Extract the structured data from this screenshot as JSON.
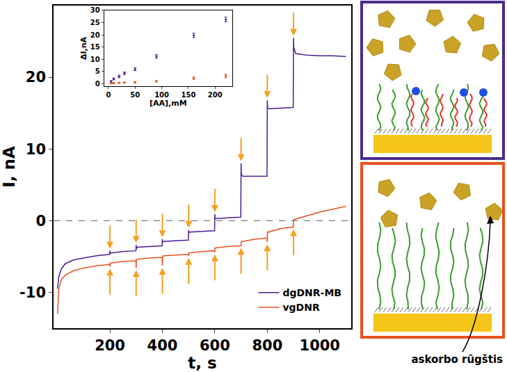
{
  "chart_data": [
    {
      "type": "line",
      "xlabel": "t, s",
      "ylabel": "I, nA",
      "xlim": [
        -15,
        1120
      ],
      "xticks": [
        200,
        400,
        600,
        800,
        1000
      ],
      "ylim": [
        -15,
        30
      ],
      "yticks": [
        -10,
        0,
        10,
        20
      ],
      "hline": 0,
      "legend": "bottom right",
      "injections": [
        200,
        300,
        400,
        500,
        600,
        700,
        800,
        900
      ],
      "series": [
        {
          "name": "dgDNR-MB",
          "color": "#4b1d96",
          "x": [
            0,
            5,
            15,
            30,
            60,
            100,
            150,
            199,
            200,
            201,
            205,
            250,
            299,
            300,
            301,
            305,
            350,
            399,
            400,
            401,
            405,
            450,
            499,
            500,
            501,
            505,
            550,
            599,
            600,
            601,
            605,
            650,
            699,
            700,
            701,
            706,
            750,
            799,
            800,
            801,
            806,
            850,
            899,
            900,
            901,
            908,
            950,
            1000,
            1050,
            1100
          ],
          "values": [
            -9.5,
            -7.8,
            -6.7,
            -6.0,
            -5.5,
            -5.2,
            -4.9,
            -4.7,
            -4.2,
            -4.6,
            -4.5,
            -4.3,
            -4.2,
            -3.4,
            -3.9,
            -3.7,
            -3.6,
            -3.5,
            -2.6,
            -3.0,
            -2.9,
            -2.8,
            -2.7,
            -1.3,
            -1.7,
            -1.6,
            -1.5,
            -1.4,
            0.9,
            0.3,
            0.3,
            0.4,
            0.5,
            8.0,
            6.5,
            6.2,
            6.2,
            6.2,
            16.8,
            15.8,
            15.6,
            15.7,
            15.8,
            25.5,
            24.2,
            23.3,
            23.1,
            23.0,
            23.0,
            22.9
          ]
        },
        {
          "name": "vgDNR",
          "color": "#e8501e",
          "x": [
            0,
            5,
            15,
            30,
            60,
            100,
            150,
            199,
            200,
            201,
            205,
            250,
            299,
            300,
            301,
            305,
            350,
            399,
            400,
            401,
            405,
            450,
            499,
            500,
            501,
            505,
            550,
            599,
            600,
            601,
            605,
            650,
            699,
            700,
            701,
            705,
            750,
            799,
            800,
            801,
            805,
            850,
            899,
            900,
            901,
            905,
            950,
            1000,
            1050,
            1100
          ],
          "values": [
            -13.0,
            -9.5,
            -8.2,
            -7.6,
            -7.0,
            -6.6,
            -6.3,
            -6.1,
            -6.4,
            -5.9,
            -5.9,
            -5.7,
            -5.6,
            -6.6,
            -5.4,
            -5.4,
            -5.2,
            -5.1,
            -6.3,
            -5.0,
            -4.9,
            -4.8,
            -4.7,
            -4.9,
            -4.5,
            -4.5,
            -4.3,
            -4.2,
            -4.4,
            -3.8,
            -3.8,
            -3.6,
            -3.5,
            -3.4,
            -2.9,
            -2.9,
            -2.6,
            -2.4,
            -3.0,
            -1.5,
            -1.6,
            -1.1,
            -0.9,
            -0.2,
            0.1,
            0.2,
            0.7,
            1.2,
            1.6,
            2.0
          ]
        }
      ]
    },
    {
      "type": "scatter",
      "xlabel": "[AA],mM",
      "ylabel": "ΔI,nA",
      "xlim": [
        -8,
        232
      ],
      "xticks": [
        0,
        50,
        100,
        150,
        200
      ],
      "ylim": [
        -1,
        30
      ],
      "yticks": [
        0,
        5,
        10,
        15,
        20,
        25,
        30
      ],
      "hline": 0,
      "x": [
        5,
        10,
        20,
        30,
        50,
        90,
        160,
        220
      ],
      "series": [
        {
          "color": "#4b1d96",
          "values": [
            1.0,
            2.0,
            3.0,
            4.3,
            6.0,
            11.2,
            19.8,
            26.3
          ],
          "errors": [
            0.3,
            0.4,
            0.5,
            0.5,
            0.6,
            0.7,
            0.9,
            1.0
          ]
        },
        {
          "color": "#e8501e",
          "values": [
            0.2,
            0.3,
            0.4,
            0.5,
            0.6,
            1.0,
            2.3,
            3.2
          ],
          "errors": [
            0.2,
            0.2,
            0.2,
            0.2,
            0.3,
            0.3,
            0.5,
            0.7
          ]
        }
      ]
    }
  ],
  "diagram": {
    "label": "askorbo rūgštis"
  }
}
